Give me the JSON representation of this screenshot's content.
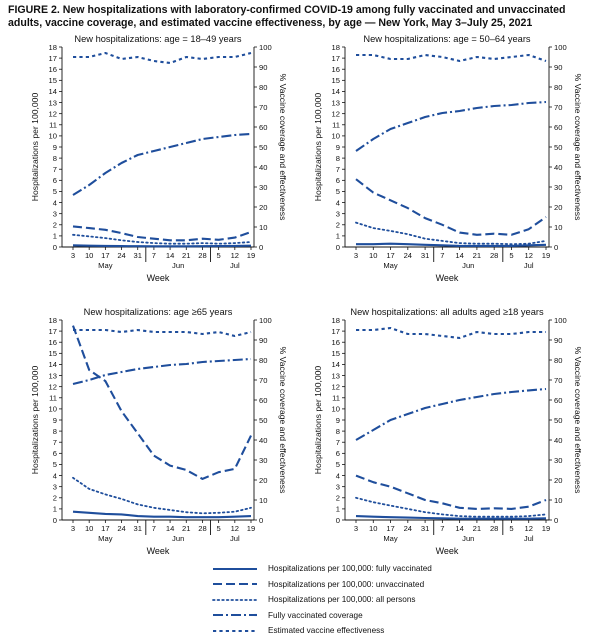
{
  "figure_title": "FIGURE 2. New hospitalizations with laboratory-confirmed COVID-19 among fully vaccinated and unvaccinated adults, vaccine coverage, and estimated vaccine effectiveness, by age — New York, May 3–July 25, 2021",
  "colors": {
    "series": "#1f4e9c",
    "axis": "#111111"
  },
  "legend": [
    {
      "key": "fully_vaccinated",
      "label": "Hospitalizations per 100,000: fully vaccinated",
      "style": "solid"
    },
    {
      "key": "unvaccinated",
      "label": "Hospitalizations per 100,000: unvaccinated",
      "style": "dashed"
    },
    {
      "key": "all_persons",
      "label": "Hospitalizations per 100,000: all persons",
      "style": "dotted"
    },
    {
      "key": "coverage",
      "label": "Fully vaccinated coverage",
      "style": "dashdot"
    },
    {
      "key": "effectiveness",
      "label": "Estimated vaccine effectiveness",
      "style": "shortdash"
    }
  ],
  "chart_data": [
    {
      "type": "line",
      "title": "New hospitalizations: age = 18–49 years",
      "xlabel": "Week",
      "ylabel": "Hospitalizations per 100,000",
      "y2label": "% Vaccine coverage and effectiveness",
      "x_tick_labels": [
        "3",
        "10",
        "17",
        "24",
        "31",
        "7",
        "14",
        "21",
        "28",
        "5",
        "12",
        "19"
      ],
      "month_labels": [
        "May",
        "Jun",
        "Jul"
      ],
      "ylim": [
        0,
        18
      ],
      "y_ticks": [
        0,
        1,
        2,
        3,
        4,
        5,
        6,
        7,
        8,
        9,
        10,
        11,
        12,
        13,
        14,
        15,
        16,
        17,
        18
      ],
      "y2lim": [
        0,
        100
      ],
      "y2_ticks": [
        0,
        10,
        20,
        30,
        40,
        50,
        60,
        70,
        80,
        90,
        100
      ],
      "series": [
        {
          "key": "fully_vaccinated",
          "axis": "left",
          "values": [
            0.15,
            0.12,
            0.1,
            0.08,
            0.07,
            0.06,
            0.06,
            0.06,
            0.07,
            0.08,
            0.1,
            0.12
          ]
        },
        {
          "key": "unvaccinated",
          "axis": "left",
          "values": [
            1.85,
            1.7,
            1.55,
            1.25,
            0.9,
            0.75,
            0.6,
            0.6,
            0.75,
            0.65,
            0.85,
            1.35
          ]
        },
        {
          "key": "all_persons",
          "axis": "left",
          "values": [
            1.1,
            0.95,
            0.8,
            0.6,
            0.45,
            0.35,
            0.3,
            0.3,
            0.35,
            0.3,
            0.35,
            0.45
          ]
        },
        {
          "key": "coverage",
          "axis": "right",
          "values": [
            26,
            31,
            37,
            42,
            46,
            48,
            50,
            52,
            54,
            55,
            56,
            56.5
          ]
        },
        {
          "key": "effectiveness",
          "axis": "right",
          "values": [
            95,
            95,
            97,
            94,
            95,
            93,
            92,
            95,
            94,
            95,
            95,
            97
          ]
        }
      ]
    },
    {
      "type": "line",
      "title": "New hospitalizations: age = 50–64 years",
      "xlabel": "Week",
      "ylabel": "Hospitalizations per 100,000",
      "y2label": "% Vaccine coverage and effectiveness",
      "x_tick_labels": [
        "3",
        "10",
        "17",
        "24",
        "31",
        "7",
        "14",
        "21",
        "28",
        "5",
        "12",
        "19"
      ],
      "month_labels": [
        "May",
        "Jun",
        "Jul"
      ],
      "ylim": [
        0,
        18
      ],
      "y_ticks": [
        0,
        1,
        2,
        3,
        4,
        5,
        6,
        7,
        8,
        9,
        10,
        11,
        12,
        13,
        14,
        15,
        16,
        17,
        18
      ],
      "y2lim": [
        0,
        100
      ],
      "y2_ticks": [
        0,
        10,
        20,
        30,
        40,
        50,
        60,
        70,
        80,
        90,
        100
      ],
      "series": [
        {
          "key": "fully_vaccinated",
          "axis": "left",
          "values": [
            0.25,
            0.25,
            0.3,
            0.25,
            0.2,
            0.15,
            0.1,
            0.1,
            0.1,
            0.1,
            0.15,
            0.2
          ]
        },
        {
          "key": "unvaccinated",
          "axis": "left",
          "values": [
            6.1,
            4.9,
            4.2,
            3.5,
            2.6,
            2.0,
            1.3,
            1.1,
            1.2,
            1.1,
            1.6,
            2.7
          ]
        },
        {
          "key": "all_persons",
          "axis": "left",
          "values": [
            2.2,
            1.7,
            1.45,
            1.15,
            0.75,
            0.55,
            0.35,
            0.3,
            0.3,
            0.25,
            0.3,
            0.55
          ]
        },
        {
          "key": "coverage",
          "axis": "right",
          "values": [
            48,
            54,
            59,
            62,
            65,
            67,
            68,
            69.5,
            70.5,
            71,
            72,
            72.5
          ]
        },
        {
          "key": "effectiveness",
          "axis": "right",
          "values": [
            96,
            96,
            94,
            94,
            96,
            95,
            93,
            95,
            94,
            95,
            96,
            93
          ]
        }
      ]
    },
    {
      "type": "line",
      "title": "New hospitalizations: age ≥65 years",
      "xlabel": "Week",
      "ylabel": "Hospitalizations per 100,000",
      "y2label": "% Vaccine coverage and effectiveness",
      "x_tick_labels": [
        "3",
        "10",
        "17",
        "24",
        "31",
        "7",
        "14",
        "21",
        "28",
        "5",
        "12",
        "19"
      ],
      "month_labels": [
        "May",
        "Jun",
        "Jul"
      ],
      "ylim": [
        0,
        18
      ],
      "y_ticks": [
        0,
        1,
        2,
        3,
        4,
        5,
        6,
        7,
        8,
        9,
        10,
        11,
        12,
        13,
        14,
        15,
        16,
        17,
        18
      ],
      "y2lim": [
        0,
        100
      ],
      "y2_ticks": [
        0,
        10,
        20,
        30,
        40,
        50,
        60,
        70,
        80,
        90,
        100
      ],
      "series": [
        {
          "key": "fully_vaccinated",
          "axis": "left",
          "values": [
            0.75,
            0.65,
            0.55,
            0.5,
            0.35,
            0.3,
            0.3,
            0.25,
            0.25,
            0.25,
            0.3,
            0.35
          ]
        },
        {
          "key": "unvaccinated",
          "axis": "left",
          "values": [
            17.5,
            13.5,
            12.5,
            9.8,
            7.8,
            5.8,
            4.9,
            4.5,
            3.7,
            4.3,
            4.6,
            7.6
          ]
        },
        {
          "key": "all_persons",
          "axis": "left",
          "values": [
            3.8,
            2.8,
            2.3,
            1.9,
            1.4,
            1.1,
            0.9,
            0.7,
            0.6,
            0.65,
            0.75,
            1.1
          ]
        },
        {
          "key": "coverage",
          "axis": "right",
          "values": [
            68,
            70,
            72.5,
            74,
            75.5,
            76.5,
            77.5,
            78,
            79,
            79.5,
            80,
            80.5
          ]
        },
        {
          "key": "effectiveness",
          "axis": "right",
          "values": [
            95,
            95,
            95,
            94,
            95,
            94,
            94,
            94,
            93,
            94,
            92,
            94
          ]
        }
      ]
    },
    {
      "type": "line",
      "title": "New hospitalizations: all adults aged ≥18 years",
      "xlabel": "Week",
      "ylabel": "Hospitalizations per 100,000",
      "y2label": "% Vaccine coverage and effectiveness",
      "x_tick_labels": [
        "3",
        "10",
        "17",
        "24",
        "31",
        "7",
        "14",
        "21",
        "28",
        "5",
        "12",
        "19"
      ],
      "month_labels": [
        "May",
        "Jun",
        "Jul"
      ],
      "ylim": [
        0,
        18
      ],
      "y_ticks": [
        0,
        1,
        2,
        3,
        4,
        5,
        6,
        7,
        8,
        9,
        10,
        11,
        12,
        13,
        14,
        15,
        16,
        17,
        18
      ],
      "y2lim": [
        0,
        100
      ],
      "y2_ticks": [
        0,
        10,
        20,
        30,
        40,
        50,
        60,
        70,
        80,
        90,
        100
      ],
      "series": [
        {
          "key": "fully_vaccinated",
          "axis": "left",
          "values": [
            0.35,
            0.3,
            0.25,
            0.22,
            0.18,
            0.15,
            0.12,
            0.12,
            0.12,
            0.12,
            0.12,
            0.15
          ]
        },
        {
          "key": "unvaccinated",
          "axis": "left",
          "values": [
            4.0,
            3.4,
            3.0,
            2.4,
            1.8,
            1.5,
            1.1,
            1.0,
            1.05,
            1.0,
            1.2,
            1.8
          ]
        },
        {
          "key": "all_persons",
          "axis": "left",
          "values": [
            2.0,
            1.6,
            1.3,
            1.0,
            0.7,
            0.5,
            0.35,
            0.3,
            0.3,
            0.3,
            0.35,
            0.5
          ]
        },
        {
          "key": "coverage",
          "axis": "right",
          "values": [
            40,
            45,
            50,
            53,
            56,
            58,
            60,
            61.5,
            63,
            64,
            64.8,
            65.5
          ]
        },
        {
          "key": "effectiveness",
          "axis": "right",
          "values": [
            95,
            95,
            96,
            93,
            93,
            92,
            91,
            94,
            93,
            93,
            94,
            94
          ]
        }
      ]
    }
  ]
}
